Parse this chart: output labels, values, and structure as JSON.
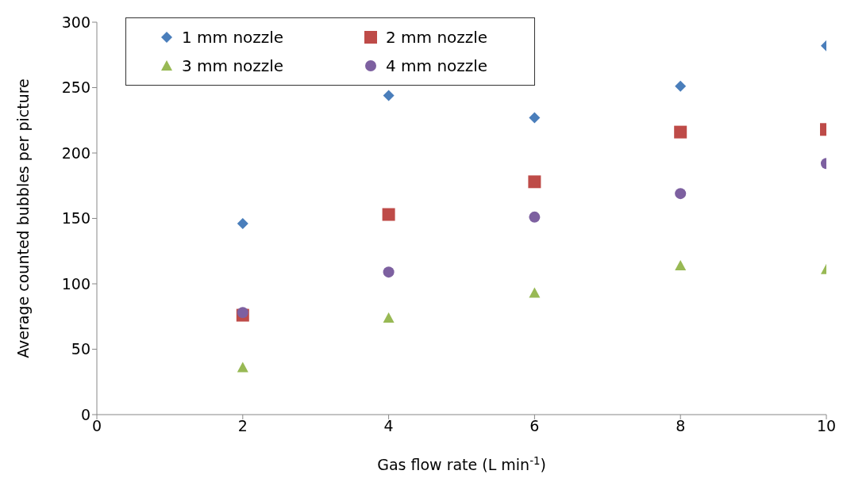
{
  "chart_data": {
    "type": "scatter",
    "xlabel": "Gas flow rate (L min$^{-1}$)",
    "ylabel": "Average counted bubbles per picture",
    "x": [
      2,
      4,
      6,
      8,
      10
    ],
    "series": [
      {
        "name": "1 mm nozzle",
        "color": "#4a7ebb",
        "marker": "diamond",
        "values": [
          146,
          244,
          227,
          251,
          282
        ]
      },
      {
        "name": "2 mm nozzle",
        "color": "#be4b48",
        "marker": "square",
        "values": [
          76,
          153,
          178,
          216,
          218
        ]
      },
      {
        "name": "3 mm nozzle",
        "color": "#98b954",
        "marker": "triangle",
        "values": [
          36,
          74,
          93,
          114,
          111
        ]
      },
      {
        "name": "4 mm nozzle",
        "color": "#7d60a0",
        "marker": "circle",
        "values": [
          78,
          109,
          151,
          169,
          192
        ]
      }
    ],
    "xlim": [
      0,
      10
    ],
    "xticks": [
      0,
      2,
      4,
      6,
      8,
      10
    ],
    "ylim": [
      0,
      300
    ],
    "yticks": [
      0,
      50,
      100,
      150,
      200,
      250,
      300
    ],
    "legend": "top left"
  }
}
